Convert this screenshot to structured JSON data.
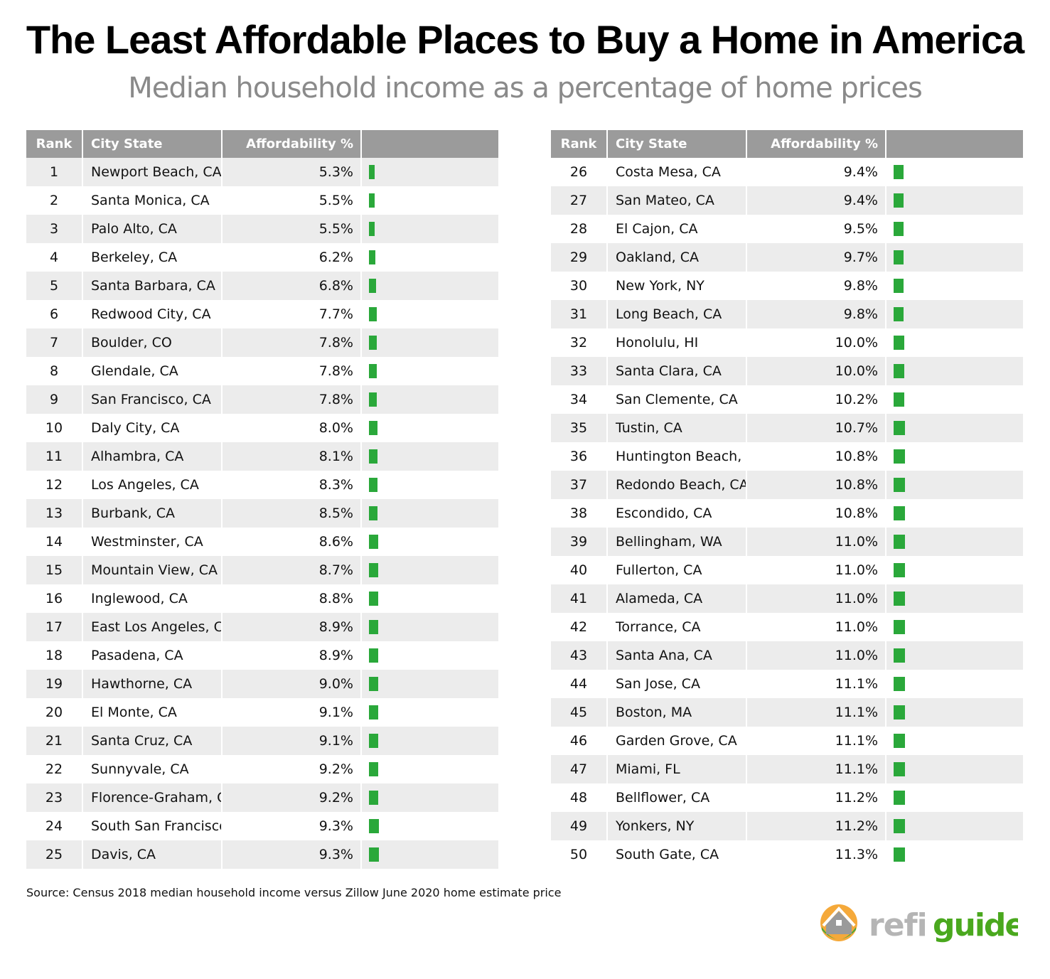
{
  "title": "The Least Affordable Places to Buy a Home in America",
  "subtitle": "Median household income as a percentage of home prices",
  "source": "Source: Census 2018 median household income versus Zillow June 2020 home estimate price",
  "logo_text": "refi guide",
  "colors": {
    "bar": "#2aa83a",
    "header": "#9b9b9b",
    "stripe": "#ececec"
  },
  "chart_data": {
    "type": "table",
    "columns": [
      "Rank",
      "City State",
      "Affordability %",
      ""
    ],
    "rows": [
      [
        1,
        "Newport Beach, CA",
        5.3
      ],
      [
        2,
        "Santa Monica, CA",
        5.5
      ],
      [
        3,
        "Palo Alto, CA",
        5.5
      ],
      [
        4,
        "Berkeley, CA",
        6.2
      ],
      [
        5,
        "Santa Barbara, CA",
        6.8
      ],
      [
        6,
        "Redwood City, CA",
        7.7
      ],
      [
        7,
        "Boulder, CO",
        7.8
      ],
      [
        8,
        "Glendale, CA",
        7.8
      ],
      [
        9,
        "San Francisco, CA",
        7.8
      ],
      [
        10,
        "Daly City, CA",
        8.0
      ],
      [
        11,
        "Alhambra, CA",
        8.1
      ],
      [
        12,
        "Los Angeles, CA",
        8.3
      ],
      [
        13,
        "Burbank, CA",
        8.5
      ],
      [
        14,
        "Westminster, CA",
        8.6
      ],
      [
        15,
        "Mountain View, CA",
        8.7
      ],
      [
        16,
        "Inglewood, CA",
        8.8
      ],
      [
        17,
        "East Los Angeles, CA",
        8.9
      ],
      [
        18,
        "Pasadena, CA",
        8.9
      ],
      [
        19,
        "Hawthorne, CA",
        9.0
      ],
      [
        20,
        "El Monte, CA",
        9.1
      ],
      [
        21,
        "Santa Cruz, CA",
        9.1
      ],
      [
        22,
        "Sunnyvale, CA",
        9.2
      ],
      [
        23,
        "Florence-Graham, CA",
        9.2
      ],
      [
        24,
        "South San Francisco, CA",
        9.3
      ],
      [
        25,
        "Davis, CA",
        9.3
      ],
      [
        26,
        "Costa Mesa, CA",
        9.4
      ],
      [
        27,
        "San Mateo, CA",
        9.4
      ],
      [
        28,
        "El Cajon, CA",
        9.5
      ],
      [
        29,
        "Oakland, CA",
        9.7
      ],
      [
        30,
        "New York, NY",
        9.8
      ],
      [
        31,
        "Long Beach, CA",
        9.8
      ],
      [
        32,
        "Honolulu, HI",
        10.0
      ],
      [
        33,
        "Santa Clara, CA",
        10.0
      ],
      [
        34,
        "San Clemente, CA",
        10.2
      ],
      [
        35,
        "Tustin, CA",
        10.7
      ],
      [
        36,
        "Huntington Beach, CA",
        10.8
      ],
      [
        37,
        "Redondo Beach, CA",
        10.8
      ],
      [
        38,
        "Escondido, CA",
        10.8
      ],
      [
        39,
        "Bellingham, WA",
        11.0
      ],
      [
        40,
        "Fullerton, CA",
        11.0
      ],
      [
        41,
        "Alameda, CA",
        11.0
      ],
      [
        42,
        "Torrance, CA",
        11.0
      ],
      [
        43,
        "Santa Ana, CA",
        11.0
      ],
      [
        44,
        "San Jose, CA",
        11.1
      ],
      [
        45,
        "Boston, MA",
        11.1
      ],
      [
        46,
        "Garden Grove, CA",
        11.1
      ],
      [
        47,
        "Miami, FL",
        11.1
      ],
      [
        48,
        "Bellflower, CA",
        11.2
      ],
      [
        49,
        "Yonkers, NY",
        11.2
      ],
      [
        50,
        "South Gate, CA",
        11.3
      ]
    ]
  }
}
